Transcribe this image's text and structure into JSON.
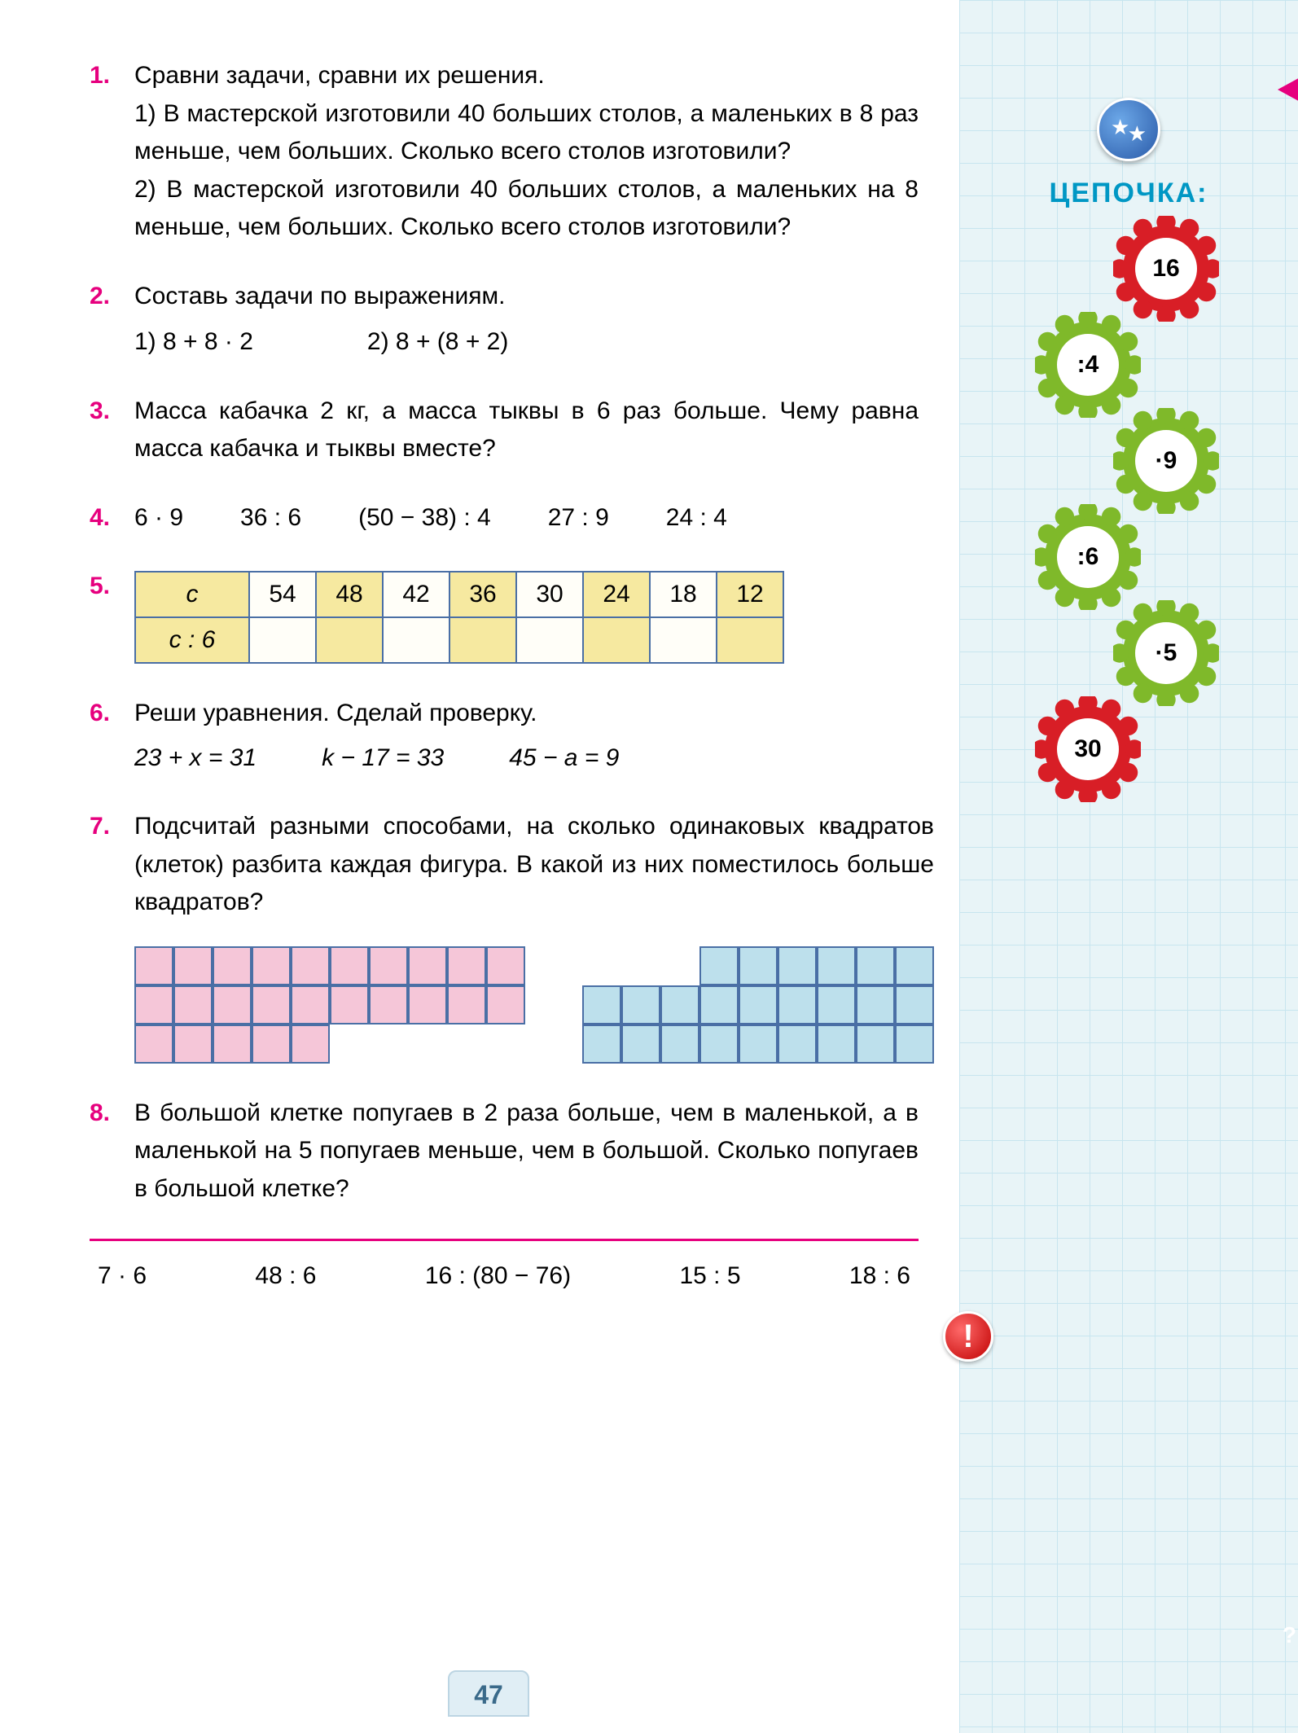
{
  "ex1": {
    "num": "1.",
    "text": "Сравни задачи, сравни их решения.\n1) В мастерской изготовили 40 больших столов, а маленьких в 8 раз меньше, чем больших. Сколько всего столов изготовили?\n2) В мастерской изготовили 40 больших столов, а маленьких на 8 меньше, чем больших. Сколько всего столов изготовили?"
  },
  "ex2": {
    "num": "2.",
    "lead": "Составь задачи по выражениям.",
    "e1": "1)  8 + 8 · 2",
    "e2": "2)  8 + (8 + 2)"
  },
  "ex3": {
    "num": "3.",
    "text": "Масса кабачка 2 кг, а масса тыквы в 6 раз больше. Чему равна масса кабачка и тыквы вместе?"
  },
  "ex4": {
    "num": "4.",
    "items": [
      "6 · 9",
      "36 : 6",
      "(50 − 38) : 4",
      "27 : 9",
      "24 : 4"
    ]
  },
  "ex5": {
    "num": "5.",
    "h1": "c",
    "h2": "c : 6",
    "row": [
      "54",
      "48",
      "42",
      "36",
      "30",
      "24",
      "18",
      "12"
    ],
    "yel": [
      false,
      true,
      false,
      true,
      false,
      true,
      false,
      true
    ]
  },
  "ex6": {
    "num": "6.",
    "lead": "Реши уравнения. Сделай проверку.",
    "eq": [
      "23 + x = 31",
      "k − 17 = 33",
      "45 − a = 9"
    ]
  },
  "ex7": {
    "num": "7.",
    "text": "Подсчитай разными способами, на сколько одинаковых квадратов (клеток) разбита каждая фигура. В какой из них поместилось больше квадратов?",
    "pink": {
      "cols": 10,
      "layout": [
        [
          1,
          1,
          1,
          1,
          1,
          1,
          1,
          1,
          1,
          1
        ],
        [
          1,
          1,
          1,
          1,
          1,
          1,
          1,
          1,
          1,
          1
        ],
        [
          1,
          1,
          1,
          1,
          1,
          0,
          0,
          0,
          0,
          0
        ]
      ],
      "cell": 48,
      "color": "#f5c6d8"
    },
    "blue": {
      "cols": 9,
      "layout": [
        [
          0,
          0,
          0,
          1,
          1,
          1,
          1,
          1,
          1
        ],
        [
          1,
          1,
          1,
          1,
          1,
          1,
          1,
          1,
          1
        ],
        [
          1,
          1,
          1,
          1,
          1,
          1,
          1,
          1,
          1
        ]
      ],
      "cell": 48,
      "color": "#bde0ec"
    }
  },
  "ex8": {
    "num": "8.",
    "text": "В большой клетке попугаев в 2 раза больше, чем в маленькой, а в маленькой на 5 попугаев меньше, чем в большой. Сколько попугаев в большой клетке?"
  },
  "footer": [
    "7 · 6",
    "48 : 6",
    "16 : (80 − 76)",
    "15 : 5",
    "18 : 6"
  ],
  "page_number": "47",
  "sidebar": {
    "title": "ЦЕПОЧКА:",
    "gears": [
      {
        "label": "16",
        "color": "red",
        "offset": "r"
      },
      {
        "label": ":4",
        "color": "green",
        "offset": "l"
      },
      {
        "label": "·9",
        "color": "green",
        "offset": "r"
      },
      {
        "label": ":6",
        "color": "green",
        "offset": "l"
      },
      {
        "label": "·5",
        "color": "green",
        "offset": "r"
      },
      {
        "label": "30",
        "color": "red",
        "offset": "l"
      }
    ],
    "alert": "!"
  },
  "question_mark": "?"
}
